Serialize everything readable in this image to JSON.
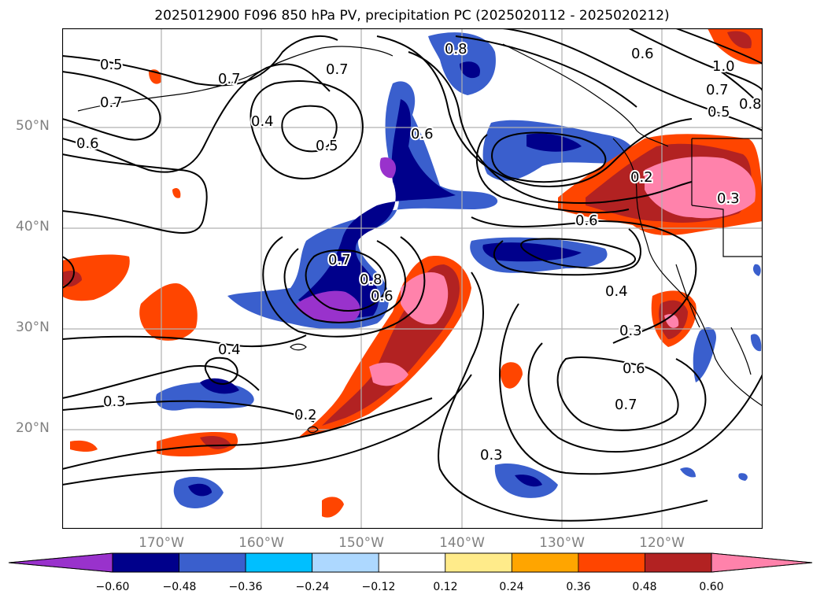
{
  "title": "2025012900 F096 850 hPa PV, precipitation PC (2025020112 - 2025020212)",
  "map": {
    "lat_labels": [
      "50°N",
      "40°N",
      "30°N",
      "20°N"
    ],
    "lon_labels": [
      "170°W",
      "160°W",
      "150°W",
      "140°W",
      "130°W",
      "120°W"
    ],
    "contour_labels": [
      "0.5",
      "0.7",
      "0.7",
      "0.6",
      "0.4",
      "0.5",
      "0.7",
      "0.6",
      "0.8",
      "0.6",
      "1.0",
      "0.7",
      "0.8",
      "0.5",
      "0.2",
      "0.3",
      "0.6",
      "0.7",
      "0.8",
      "0.6",
      "0.4",
      "0.3",
      "0.6",
      "0.7",
      "0.4",
      "0.3",
      "0.2",
      "0.3"
    ]
  },
  "colorbar": {
    "ticks": [
      "−0.60",
      "−0.48",
      "−0.36",
      "−0.24",
      "−0.12",
      "0.12",
      "0.24",
      "0.36",
      "0.48",
      "0.60"
    ],
    "colors": [
      "#9932cc",
      "#00008b",
      "#3a5fcd",
      "#00bfff",
      "#add8ff",
      "#ffffff",
      "#ffeb8a",
      "#ffa500",
      "#ff4500",
      "#b22222",
      "#ff82ab"
    ]
  }
}
